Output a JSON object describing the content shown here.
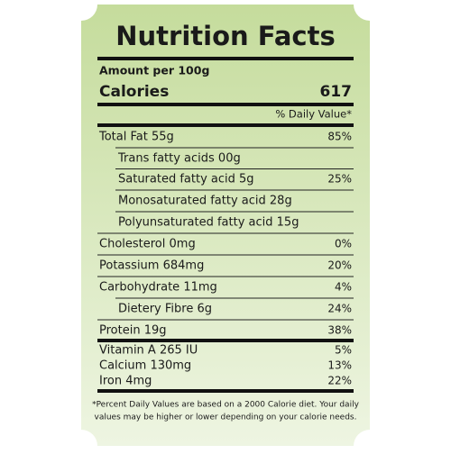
{
  "title": "Nutrition Facts",
  "amount_per": "Amount per 100g",
  "calories": {
    "label": "Calories",
    "value": "617"
  },
  "daily_value_header": "% Daily Value*",
  "rows": [
    {
      "name": "Total Fat 55g",
      "percent": "85%",
      "indent": false
    },
    {
      "name": "Trans fatty acids 00g",
      "indent": true
    },
    {
      "name": "Saturated fatty acid 5g",
      "percent": "25%",
      "indent": true
    },
    {
      "name": "Monosaturated fatty acid 28g",
      "indent": true
    },
    {
      "name": "Polyunsaturated fatty acid 15g",
      "indent": true
    },
    {
      "name": "Cholesterol 0mg",
      "percent": "0%",
      "indent": false
    },
    {
      "name": "Potassium 684mg",
      "percent": "20%",
      "indent": false
    },
    {
      "name": "Carbohydrate 11mg",
      "percent": "4%",
      "indent": false
    },
    {
      "name": "Dietery Fibre 6g",
      "percent": "24%",
      "indent": true
    },
    {
      "name": "Protein 19g",
      "percent": "38%",
      "indent": false
    },
    {
      "name": "Vitamin A 265 IU",
      "percent": "5%",
      "indent": false
    },
    {
      "name": "Calcium 130mg",
      "percent": "13%",
      "indent": false
    },
    {
      "name": "Iron 4mg",
      "percent": "22%",
      "indent": false
    }
  ],
  "footnote": [
    "*Percent Daily Values are based on a 2000 Calorie diet. Your daily",
    "values may be higher or lower depending on your calorie needs."
  ]
}
